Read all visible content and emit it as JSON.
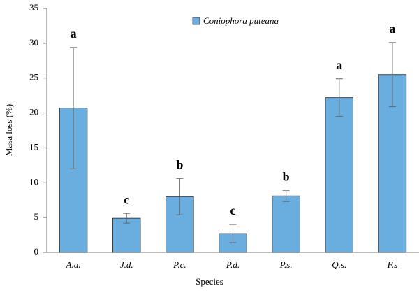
{
  "chart_data": {
    "type": "bar",
    "x_label": "Species",
    "y_label": "Masa loss (%)",
    "categories": [
      "A.a.",
      "J.d.",
      "P.c.",
      "P.d.",
      "P.s.",
      "Q.s.",
      "F.s"
    ],
    "series": [
      {
        "name": "Coniophora puteana",
        "color": "#6aaee0",
        "values": [
          20.7,
          4.9,
          8.0,
          2.7,
          8.1,
          22.2,
          25.5
        ]
      }
    ],
    "errors": [
      8.7,
      0.7,
      2.6,
      1.3,
      0.8,
      2.7,
      4.6
    ],
    "significance": [
      "a",
      "c",
      "b",
      "c",
      "b",
      "a",
      "a"
    ],
    "ylim": [
      0,
      35
    ],
    "yticks": [
      0,
      5,
      10,
      15,
      20,
      25,
      30,
      35
    ],
    "grid": false
  }
}
